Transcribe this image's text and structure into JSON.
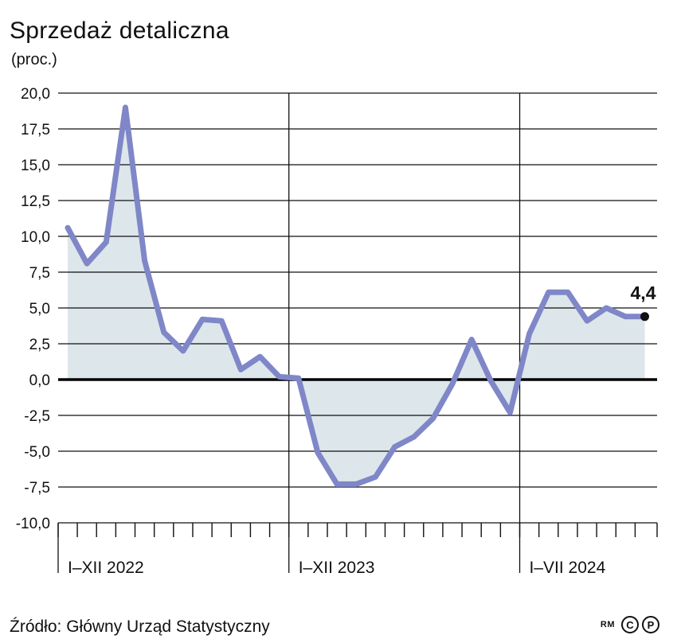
{
  "title": "Sprzedaż detaliczna",
  "subtitle": "(proc.)",
  "source": "Źródło: Główny Urząd Statystyczny",
  "credit": {
    "rm": "RM",
    "copyright": "C",
    "phonogram": "P"
  },
  "colors": {
    "line": "#7f87c8",
    "area": "#dde6ea",
    "grid": "#111111",
    "zero": "#000000"
  },
  "chart_data": {
    "type": "area",
    "ylim": [
      -10,
      20
    ],
    "yticks": [
      "20,0",
      "17,5",
      "15,0",
      "12,5",
      "10,0",
      "7,5",
      "5,0",
      "2,5",
      "0,0",
      "-2,5",
      "-5,0",
      "-7,5",
      "-10,0"
    ],
    "period_labels": [
      "I–XII 2022",
      "I–XII 2023",
      "I–VII 2024"
    ],
    "months_per_period": [
      12,
      12,
      7
    ],
    "last_value_label": "4,4",
    "series": [
      {
        "values": [
          10.6,
          8.1,
          9.6,
          19.0,
          8.3,
          3.3,
          2.0,
          4.2,
          4.1,
          0.7,
          1.6,
          0.2,
          0.1,
          -5.1,
          -7.3,
          -7.3,
          -6.8,
          -4.7,
          -4.0,
          -2.7,
          -0.3,
          2.8,
          -0.1,
          -2.3,
          3.2,
          6.1,
          6.1,
          4.1,
          5.0,
          4.4,
          4.4
        ]
      }
    ]
  }
}
